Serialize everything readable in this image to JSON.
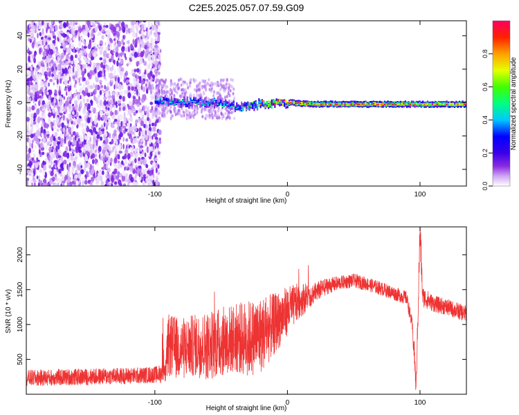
{
  "title": "C2E5.2025.057.07.59.G09",
  "chart_data": [
    {
      "type": "heatmap",
      "xlabel": "Height of straight line (km)",
      "ylabel": "Frequency (Hz)",
      "xlim": [
        -197,
        135
      ],
      "ylim": [
        -50,
        49
      ],
      "xticks": [
        -100,
        0,
        100
      ],
      "yticks": [
        40,
        20,
        0,
        -20,
        -40
      ],
      "grid": false,
      "colorbar": {
        "label": "Normalized spectral amplitude",
        "range": [
          0,
          1
        ],
        "ticks": [
          "0.0",
          "0.2",
          "0.4",
          "0.6",
          "0.8"
        ],
        "colormap": [
          "#ffffff",
          "#cfa7f4",
          "#8a2be2",
          "#3a00e8",
          "#0000ff",
          "#00c8ff",
          "#00ff80",
          "#40ff00",
          "#e6ff00",
          "#ffa000",
          "#ff2000",
          "#ff0060"
        ]
      },
      "features": {
        "noise_region_x": [
          -197,
          -100
        ],
        "carrier_track": [
          {
            "x": -100,
            "freq": 1,
            "amp": 0.45
          },
          {
            "x": -80,
            "freq": 0,
            "amp": 0.5
          },
          {
            "x": -55,
            "freq": 0,
            "amp": 0.5
          },
          {
            "x": -35,
            "freq": -3,
            "amp": 0.55
          },
          {
            "x": -20,
            "freq": -1,
            "amp": 0.7
          },
          {
            "x": 0,
            "freq": 0,
            "amp": 0.9
          },
          {
            "x": 20,
            "freq": -1,
            "amp": 0.8
          },
          {
            "x": 50,
            "freq": -1,
            "amp": 0.85
          },
          {
            "x": 80,
            "freq": -1,
            "amp": 0.95
          },
          {
            "x": 95,
            "freq": -1,
            "amp": 0.7
          },
          {
            "x": 135,
            "freq": -1,
            "amp": 0.95
          }
        ]
      }
    },
    {
      "type": "line",
      "xlabel": "Height of straight line (km)",
      "ylabel": "SNR (10 * v/v)",
      "xlim": [
        -197,
        135
      ],
      "ylim": [
        0,
        2400
      ],
      "xticks": [
        -100,
        0,
        100
      ],
      "yticks": [
        500,
        1000,
        1500,
        2000
      ],
      "grid": false,
      "series": [
        {
          "color": "#ee3333",
          "x": [
            -197,
            -150,
            -110,
            -100,
            -92,
            -90,
            -80,
            -70,
            -60,
            -50,
            -40,
            -30,
            -20,
            -10,
            0,
            10,
            20,
            30,
            40,
            50,
            60,
            70,
            80,
            90,
            94,
            96,
            97,
            98,
            100,
            102,
            110,
            120,
            135
          ],
          "values": [
            230,
            250,
            270,
            280,
            300,
            700,
            650,
            700,
            700,
            750,
            800,
            800,
            850,
            1000,
            1200,
            1350,
            1450,
            1550,
            1600,
            1630,
            1580,
            1520,
            1450,
            1380,
            1000,
            500,
            60,
            800,
            2350,
            1400,
            1300,
            1250,
            1150
          ],
          "noise_amplitude": [
            120,
            120,
            120,
            120,
            150,
            450,
            450,
            450,
            500,
            500,
            500,
            550,
            550,
            450,
            350,
            250,
            150,
            120,
            100,
            100,
            100,
            100,
            100,
            100,
            100,
            200,
            100,
            200,
            300,
            150,
            120,
            120,
            120
          ]
        }
      ]
    }
  ]
}
